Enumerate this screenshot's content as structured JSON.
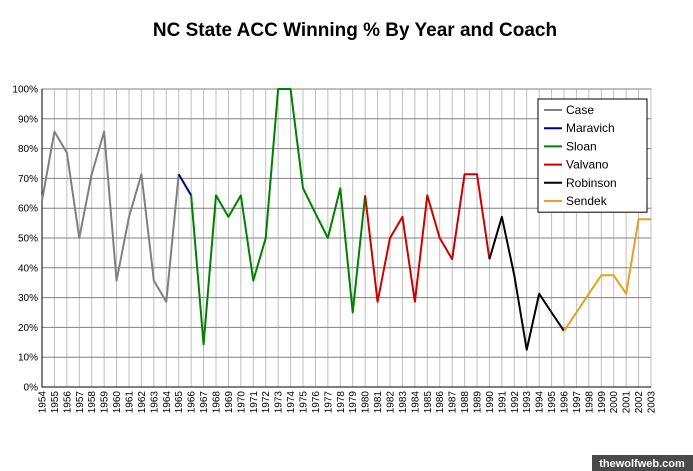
{
  "chart_data": {
    "type": "line",
    "title": "NC State ACC Winning % By Year and Coach",
    "xlabel": "",
    "ylabel": "",
    "ylim": [
      0,
      100
    ],
    "yticks": [
      "0%",
      "10%",
      "20%",
      "30%",
      "40%",
      "50%",
      "60%",
      "70%",
      "80%",
      "90%",
      "100%"
    ],
    "x": [
      1954,
      1955,
      1956,
      1957,
      1958,
      1959,
      1960,
      1961,
      1962,
      1963,
      1964,
      1965,
      1966,
      1967,
      1968,
      1969,
      1970,
      1971,
      1972,
      1973,
      1974,
      1975,
      1976,
      1977,
      1978,
      1979,
      1980,
      1981,
      1982,
      1983,
      1984,
      1985,
      1986,
      1987,
      1988,
      1989,
      1990,
      1991,
      1992,
      1993,
      1994,
      1995,
      1996,
      1997,
      1998,
      1999,
      2000,
      2001,
      2002,
      2003
    ],
    "xlabels": [
      "1954",
      "1955",
      "1956",
      "1957",
      "1958",
      "1959",
      "1960",
      "1961",
      "1962",
      "1963",
      "1964",
      "1965",
      "1966",
      "1967",
      "1968",
      "1969",
      "1970",
      "1971",
      "1972",
      "1973",
      "1974",
      "1975",
      "1976",
      "1977",
      "1978",
      "1979",
      "1980",
      "1981",
      "1982",
      "1983",
      "1984",
      "1985",
      "1986",
      "1987",
      "1988",
      "1989",
      "1990",
      "1991",
      "1992",
      "1993",
      "1994",
      "1995",
      "1996",
      "1997",
      "1998",
      "1999",
      "2000",
      "2001",
      "2002",
      "2003"
    ],
    "grid": true,
    "legend_position": "top-right",
    "series": [
      {
        "name": "Case",
        "color": "#808080",
        "x": [
          1954,
          1955,
          1956,
          1957,
          1958,
          1959,
          1960,
          1961,
          1962,
          1963,
          1964,
          1965
        ],
        "values": [
          62.5,
          85.7,
          78.6,
          50,
          71.4,
          85.7,
          35.7,
          57.1,
          71.4,
          35.7,
          28.6,
          71.4
        ]
      },
      {
        "name": "Maravich",
        "color": "#000080",
        "x": [
          1965,
          1966
        ],
        "values": [
          71.4,
          64.3
        ]
      },
      {
        "name": "Sloan",
        "color": "#008000",
        "x": [
          1966,
          1967,
          1968,
          1969,
          1970,
          1971,
          1972,
          1973,
          1974,
          1975,
          1976,
          1977,
          1978,
          1979,
          1980
        ],
        "values": [
          64.3,
          14.3,
          64.3,
          57.1,
          64.3,
          35.7,
          50,
          100,
          100,
          66.7,
          58.3,
          50,
          66.7,
          25,
          64.3
        ]
      },
      {
        "name": "Valvano",
        "color": "#cc0000",
        "x": [
          1980,
          1981,
          1982,
          1983,
          1984,
          1985,
          1986,
          1987,
          1988,
          1989,
          1990
        ],
        "values": [
          64.3,
          28.6,
          50,
          57.1,
          28.6,
          64.3,
          50,
          42.9,
          71.4,
          71.4,
          42.9
        ]
      },
      {
        "name": "Robinson",
        "color": "#000000",
        "x": [
          1990,
          1991,
          1992,
          1993,
          1994,
          1995,
          1996
        ],
        "values": [
          42.9,
          57.1,
          37.5,
          12.5,
          31.3,
          25,
          18.8
        ]
      },
      {
        "name": "Sendek",
        "color": "#e6a020",
        "x": [
          1996,
          1997,
          1998,
          1999,
          2000,
          2001,
          2002,
          2003
        ],
        "values": [
          18.8,
          25,
          31.3,
          37.5,
          37.5,
          31.3,
          56.3,
          56.3
        ]
      }
    ]
  },
  "watermark": "thewolfweb.com"
}
